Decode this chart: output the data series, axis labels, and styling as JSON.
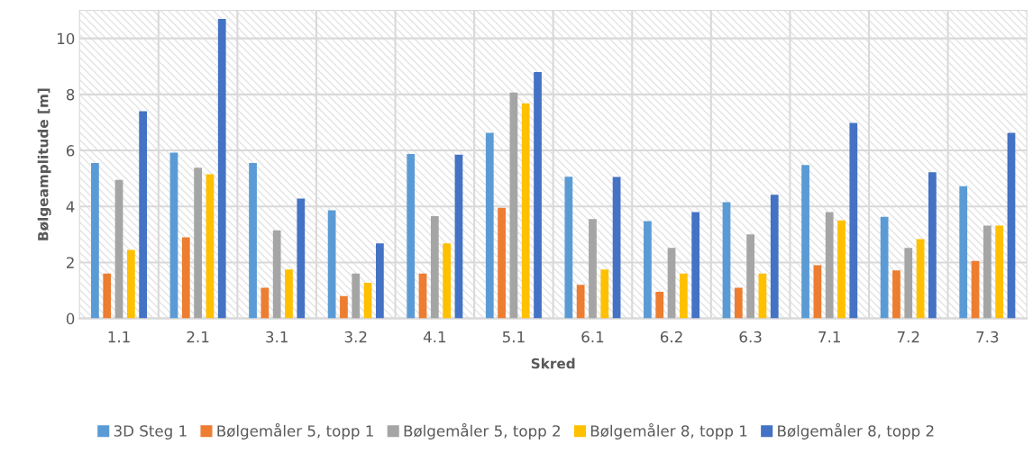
{
  "chart_data": {
    "type": "bar",
    "xlabel": "Skred",
    "ylabel": "Bølgeamplitude [m]",
    "categories": [
      "1.1",
      "2.1",
      "3.1",
      "3.2",
      "4.1",
      "5.1",
      "6.1",
      "6.2",
      "6.3",
      "7.1",
      "7.2",
      "7.3"
    ],
    "series": [
      {
        "name": "3D Steg 1",
        "color": "#5b9bd5",
        "values": [
          5.55,
          5.92,
          5.55,
          3.86,
          5.87,
          6.63,
          5.06,
          3.48,
          4.15,
          5.48,
          3.63,
          4.72
        ]
      },
      {
        "name": "Bølgemåler 5, topp 1",
        "color": "#ed7d31",
        "values": [
          1.6,
          2.9,
          1.1,
          0.8,
          1.6,
          3.95,
          1.2,
          0.95,
          1.1,
          1.9,
          1.72,
          2.05
        ]
      },
      {
        "name": "Bølgemåler 5, topp 2",
        "color": "#a5a5a5",
        "values": [
          4.95,
          5.38,
          3.15,
          1.6,
          3.65,
          8.07,
          3.55,
          2.52,
          3.0,
          3.8,
          2.52,
          3.32
        ]
      },
      {
        "name": "Bølgemåler 8, topp 1",
        "color": "#ffc000",
        "values": [
          2.45,
          5.15,
          1.75,
          1.27,
          2.68,
          7.68,
          1.75,
          1.6,
          1.6,
          3.5,
          2.83,
          3.32
        ]
      },
      {
        "name": "Bølgemåler 8, topp 2",
        "color": "#4472c4",
        "values": [
          7.4,
          10.7,
          4.28,
          2.68,
          5.85,
          8.8,
          5.05,
          3.8,
          4.42,
          6.98,
          5.22,
          6.63
        ]
      }
    ],
    "ylim": [
      0,
      11
    ],
    "yticks": [
      0,
      2,
      4,
      6,
      8,
      10
    ],
    "grid": true,
    "legend": "bottom"
  }
}
